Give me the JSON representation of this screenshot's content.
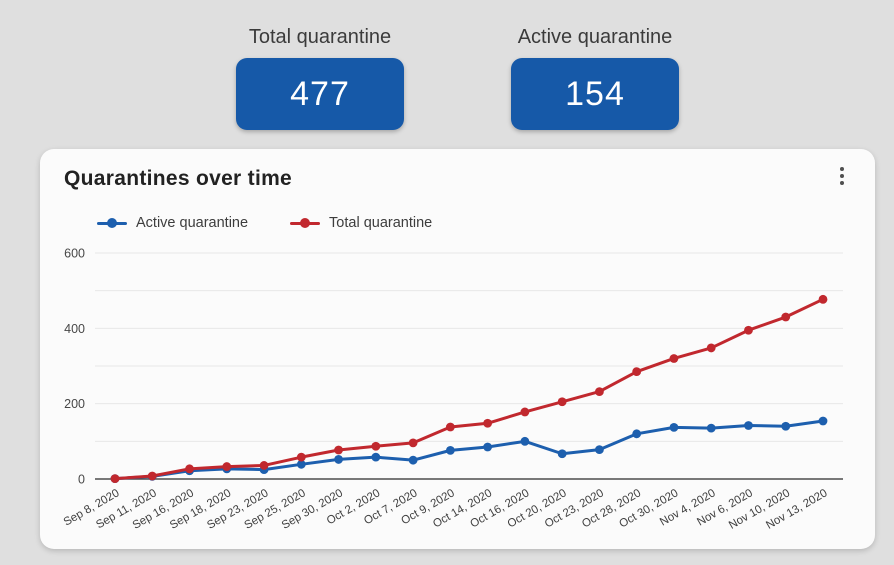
{
  "page": {
    "background": "#dfdfdf"
  },
  "stats": [
    {
      "label": "Total quarantine",
      "value": "477"
    },
    {
      "label": "Active quarantine",
      "value": "154"
    }
  ],
  "card": {
    "title": "Quarantines over time",
    "menu_icon": "kebab-menu-icon"
  },
  "colors": {
    "stat_card_blue": "#1659a8",
    "series_blue": "#1d5fae",
    "series_red": "#c1282e",
    "grid_line": "#e7e7e7",
    "axis_line": "#4d4d4d",
    "tick_text": "#474747"
  },
  "chart_data": {
    "type": "line",
    "title": "Quarantines over time",
    "categories": [
      "Sep 8, 2020",
      "Sep 11, 2020",
      "Sep 16, 2020",
      "Sep 18, 2020",
      "Sep 23, 2020",
      "Sep 25, 2020",
      "Sep 30, 2020",
      "Oct 2, 2020",
      "Oct 7, 2020",
      "Oct 9, 2020",
      "Oct 14, 2020",
      "Oct 16, 2020",
      "Oct 20, 2020",
      "Oct 23, 2020",
      "Oct 28, 2020",
      "Oct 30, 2020",
      "Nov 4, 2020",
      "Nov 6, 2020",
      "Nov 10, 2020",
      "Nov 13, 2020"
    ],
    "series": [
      {
        "name": "Active quarantine",
        "color": "#1d5fae",
        "values": [
          1,
          7,
          22,
          27,
          25,
          39,
          52,
          58,
          50,
          76,
          85,
          100,
          67,
          78,
          120,
          137,
          135,
          142,
          140,
          154
        ]
      },
      {
        "name": "Total quarantine",
        "color": "#c1282e",
        "values": [
          1,
          8,
          27,
          33,
          36,
          58,
          77,
          87,
          96,
          138,
          148,
          178,
          205,
          232,
          285,
          320,
          348,
          395,
          430,
          477
        ]
      }
    ],
    "ylim": [
      0,
      600
    ],
    "yticks": [
      0,
      200,
      400,
      600
    ],
    "grid_step": 100,
    "grid": true,
    "legend_position": "top-left",
    "x_label_rotation": -30,
    "marker": "circle"
  }
}
